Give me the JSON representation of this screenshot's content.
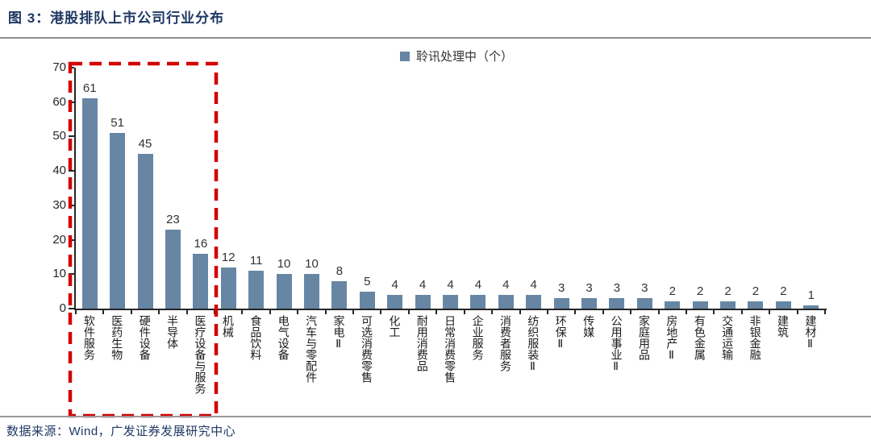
{
  "page": {
    "title": "图 3：港股排队上市公司行业分布",
    "source": "数据来源：Wind，广发证券发展研究中心"
  },
  "chart_data": {
    "type": "bar",
    "title": "图 3：港股排队上市公司行业分布",
    "legend": [
      "聆讯处理中（个）"
    ],
    "legend_position": "top-center",
    "categories": [
      "软件服务",
      "医药生物",
      "硬件设备",
      "半导体",
      "医疗设备与服务",
      "机械",
      "食品饮料",
      "电气设备",
      "汽车与零配件",
      "家电Ⅱ",
      "可选消费零售",
      "化工",
      "耐用消费品",
      "日常消费零售",
      "企业服务",
      "消费者服务",
      "纺织服装Ⅱ",
      "环保Ⅱ",
      "传媒",
      "公用事业Ⅱ",
      "家庭用品",
      "房地产Ⅱ",
      "有色金属",
      "交通运输",
      "非银金融",
      "建筑",
      "建材Ⅱ"
    ],
    "values": [
      61,
      51,
      45,
      23,
      16,
      12,
      11,
      10,
      10,
      8,
      5,
      4,
      4,
      4,
      4,
      4,
      4,
      3,
      3,
      3,
      3,
      2,
      2,
      2,
      2,
      2,
      1
    ],
    "xlabel": "",
    "ylabel": "",
    "ylim": [
      0,
      70
    ],
    "yticks": [
      0,
      10,
      20,
      30,
      40,
      50,
      60,
      70
    ],
    "grid": false,
    "value_labels": true,
    "annotation": {
      "type": "dashed-box",
      "category_range": [
        0,
        4
      ],
      "color": "#d30000"
    }
  },
  "colors": {
    "title_text": "#1f3864",
    "bar": "#6786a3",
    "highlight_box": "#d30000",
    "axis": "#262626",
    "separator": "#8c8c8c"
  }
}
